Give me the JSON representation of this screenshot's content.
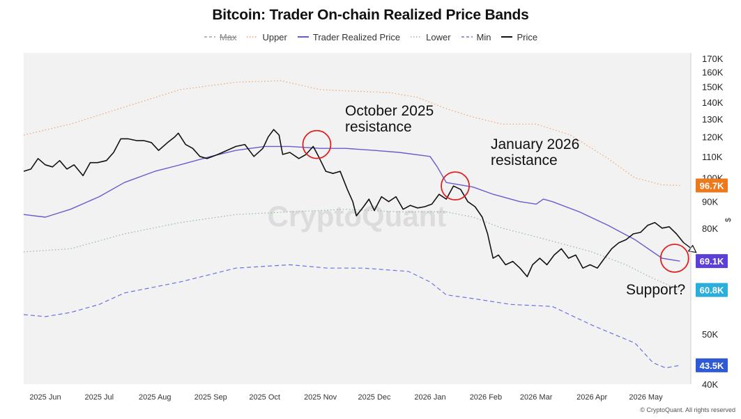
{
  "chart_data": {
    "type": "line",
    "title": "Bitcoin: Trader On-chain Realized Price Bands",
    "y_unit": "$",
    "y_scale": "log",
    "ylim": [
      40000,
      170000
    ],
    "y_ticks": [
      {
        "v": 170000,
        "label": "170K"
      },
      {
        "v": 160000,
        "label": "160K"
      },
      {
        "v": 150000,
        "label": "150K"
      },
      {
        "v": 140000,
        "label": "140K"
      },
      {
        "v": 130000,
        "label": "130K"
      },
      {
        "v": 120000,
        "label": "120K"
      },
      {
        "v": 110000,
        "label": "110K"
      },
      {
        "v": 100000,
        "label": "100K"
      },
      {
        "v": 90000,
        "label": "90K"
      },
      {
        "v": 80000,
        "label": "80K"
      },
      {
        "v": 70000,
        "label": "70K"
      },
      {
        "v": 60000,
        "label": "60K"
      },
      {
        "v": 50000,
        "label": "50K"
      },
      {
        "v": 40000,
        "label": "40K"
      }
    ],
    "xlim": [
      "2025-05-20",
      "2026-05-26"
    ],
    "x_ticks": [
      {
        "date": "2025-06-01",
        "label": "2025 Jun"
      },
      {
        "date": "2025-07-01",
        "label": "2025 Jul"
      },
      {
        "date": "2025-08-01",
        "label": "2025 Aug"
      },
      {
        "date": "2025-09-01",
        "label": "2025 Sep"
      },
      {
        "date": "2025-10-01",
        "label": "2025 Oct"
      },
      {
        "date": "2025-11-01",
        "label": "2025 Nov"
      },
      {
        "date": "2025-12-01",
        "label": "2025 Dec"
      },
      {
        "date": "2026-01-01",
        "label": "2026 Jan"
      },
      {
        "date": "2026-02-01",
        "label": "2026 Feb"
      },
      {
        "date": "2026-03-01",
        "label": "2026 Mar"
      },
      {
        "date": "2026-04-01",
        "label": "2026 Apr"
      },
      {
        "date": "2026-05-01",
        "label": "2026 May"
      }
    ],
    "legend_position": "top-center",
    "series": [
      {
        "name": "Max",
        "style": "dashed",
        "color": "#9aa0b8",
        "hidden": true,
        "points": []
      },
      {
        "name": "Upper",
        "style": "dotted",
        "color": "#f0a070",
        "points": [
          [
            "2025-05-20",
            121000
          ],
          [
            "2025-06-15",
            127000
          ],
          [
            "2025-07-15",
            137000
          ],
          [
            "2025-08-15",
            148000
          ],
          [
            "2025-09-15",
            153000
          ],
          [
            "2025-10-10",
            154000
          ],
          [
            "2025-11-01",
            148000
          ],
          [
            "2025-11-20",
            147000
          ],
          [
            "2025-12-10",
            146000
          ],
          [
            "2025-12-25",
            143000
          ],
          [
            "2026-01-10",
            136000
          ],
          [
            "2026-01-25",
            131000
          ],
          [
            "2026-02-10",
            127000
          ],
          [
            "2026-03-01",
            127000
          ],
          [
            "2026-03-20",
            121000
          ],
          [
            "2026-04-10",
            109000
          ],
          [
            "2026-04-25",
            100000
          ],
          [
            "2026-05-10",
            97000
          ],
          [
            "2026-05-20",
            96700
          ]
        ]
      },
      {
        "name": "Trader Realized Price",
        "style": "solid",
        "color": "#6a5acd",
        "points": [
          [
            "2025-05-20",
            85000
          ],
          [
            "2025-06-01",
            84000
          ],
          [
            "2025-06-15",
            87000
          ],
          [
            "2025-07-01",
            92000
          ],
          [
            "2025-07-15",
            98000
          ],
          [
            "2025-08-01",
            103000
          ],
          [
            "2025-08-15",
            106000
          ],
          [
            "2025-09-01",
            110000
          ],
          [
            "2025-09-15",
            113000
          ],
          [
            "2025-10-01",
            115000
          ],
          [
            "2025-10-15",
            115000
          ],
          [
            "2025-11-01",
            114000
          ],
          [
            "2025-11-15",
            114000
          ],
          [
            "2025-12-01",
            113000
          ],
          [
            "2025-12-15",
            112000
          ],
          [
            "2026-01-01",
            110000
          ],
          [
            "2026-01-05",
            105000
          ],
          [
            "2026-01-10",
            98000
          ],
          [
            "2026-01-25",
            96000
          ],
          [
            "2026-02-05",
            93000
          ],
          [
            "2026-02-20",
            90000
          ],
          [
            "2026-03-01",
            89000
          ],
          [
            "2026-03-05",
            91000
          ],
          [
            "2026-03-10",
            90000
          ],
          [
            "2026-03-25",
            86000
          ],
          [
            "2026-04-10",
            81000
          ],
          [
            "2026-04-25",
            76000
          ],
          [
            "2026-05-10",
            70000
          ],
          [
            "2026-05-20",
            69100
          ]
        ]
      },
      {
        "name": "Lower",
        "style": "dotted",
        "color": "#8fbc8f",
        "points": [
          [
            "2025-05-20",
            72000
          ],
          [
            "2025-06-15",
            73000
          ],
          [
            "2025-07-15",
            78000
          ],
          [
            "2025-08-15",
            82000
          ],
          [
            "2025-09-15",
            85000
          ],
          [
            "2025-10-15",
            86000
          ],
          [
            "2025-11-15",
            87000
          ],
          [
            "2025-12-15",
            86000
          ],
          [
            "2026-01-10",
            86000
          ],
          [
            "2026-01-25",
            84000
          ],
          [
            "2026-02-10",
            80000
          ],
          [
            "2026-03-01",
            77000
          ],
          [
            "2026-04-01",
            72000
          ],
          [
            "2026-04-20",
            68000
          ],
          [
            "2026-05-05",
            64000
          ],
          [
            "2026-05-20",
            60800
          ]
        ]
      },
      {
        "name": "Min",
        "style": "dashed",
        "color": "#6a73e0",
        "points": [
          [
            "2025-05-20",
            54500
          ],
          [
            "2025-06-01",
            54000
          ],
          [
            "2025-06-15",
            55000
          ],
          [
            "2025-07-01",
            57000
          ],
          [
            "2025-07-15",
            60000
          ],
          [
            "2025-08-15",
            63000
          ],
          [
            "2025-09-15",
            67000
          ],
          [
            "2025-10-15",
            68000
          ],
          [
            "2025-11-05",
            67000
          ],
          [
            "2025-11-25",
            67000
          ],
          [
            "2025-12-20",
            66000
          ],
          [
            "2026-01-01",
            63000
          ],
          [
            "2026-01-10",
            59500
          ],
          [
            "2026-01-25",
            58500
          ],
          [
            "2026-02-15",
            57000
          ],
          [
            "2026-03-10",
            56500
          ],
          [
            "2026-04-01",
            52000
          ],
          [
            "2026-04-25",
            48000
          ],
          [
            "2026-05-05",
            44000
          ],
          [
            "2026-05-12",
            43000
          ],
          [
            "2026-05-20",
            43500
          ]
        ]
      },
      {
        "name": "Price",
        "style": "solid",
        "color": "#111111",
        "points": [
          [
            "2025-05-20",
            103000
          ],
          [
            "2025-05-24",
            104000
          ],
          [
            "2025-05-28",
            109000
          ],
          [
            "2025-06-01",
            106000
          ],
          [
            "2025-06-05",
            105000
          ],
          [
            "2025-06-09",
            108000
          ],
          [
            "2025-06-13",
            104000
          ],
          [
            "2025-06-17",
            106000
          ],
          [
            "2025-06-22",
            101000
          ],
          [
            "2025-06-26",
            107000
          ],
          [
            "2025-06-30",
            107000
          ],
          [
            "2025-07-05",
            108000
          ],
          [
            "2025-07-09",
            112000
          ],
          [
            "2025-07-13",
            119000
          ],
          [
            "2025-07-17",
            119000
          ],
          [
            "2025-07-22",
            118000
          ],
          [
            "2025-07-26",
            118000
          ],
          [
            "2025-07-30",
            117000
          ],
          [
            "2025-08-03",
            113000
          ],
          [
            "2025-08-08",
            117000
          ],
          [
            "2025-08-12",
            120000
          ],
          [
            "2025-08-14",
            122000
          ],
          [
            "2025-08-18",
            116000
          ],
          [
            "2025-08-22",
            114000
          ],
          [
            "2025-08-26",
            110000
          ],
          [
            "2025-08-30",
            109000
          ],
          [
            "2025-09-05",
            111000
          ],
          [
            "2025-09-10",
            113000
          ],
          [
            "2025-09-15",
            115000
          ],
          [
            "2025-09-20",
            116000
          ],
          [
            "2025-09-25",
            110000
          ],
          [
            "2025-09-30",
            114000
          ],
          [
            "2025-10-03",
            120000
          ],
          [
            "2025-10-06",
            124000
          ],
          [
            "2025-10-09",
            121000
          ],
          [
            "2025-10-11",
            111000
          ],
          [
            "2025-10-15",
            112000
          ],
          [
            "2025-10-20",
            109000
          ],
          [
            "2025-10-24",
            111000
          ],
          [
            "2025-10-28",
            115000
          ],
          [
            "2025-10-31",
            110000
          ],
          [
            "2025-11-04",
            103000
          ],
          [
            "2025-11-08",
            102000
          ],
          [
            "2025-11-12",
            103000
          ],
          [
            "2025-11-16",
            95000
          ],
          [
            "2025-11-19",
            90000
          ],
          [
            "2025-11-21",
            84500
          ],
          [
            "2025-11-25",
            88000
          ],
          [
            "2025-11-28",
            91000
          ],
          [
            "2025-12-01",
            86500
          ],
          [
            "2025-12-05",
            92000
          ],
          [
            "2025-12-09",
            90000
          ],
          [
            "2025-12-13",
            92000
          ],
          [
            "2025-12-17",
            87000
          ],
          [
            "2025-12-21",
            88500
          ],
          [
            "2025-12-25",
            87500
          ],
          [
            "2025-12-29",
            88000
          ],
          [
            "2026-01-02",
            89000
          ],
          [
            "2026-01-06",
            93000
          ],
          [
            "2026-01-10",
            91000
          ],
          [
            "2026-01-14",
            96500
          ],
          [
            "2026-01-18",
            95000
          ],
          [
            "2026-01-22",
            90000
          ],
          [
            "2026-01-26",
            88000
          ],
          [
            "2026-01-30",
            84000
          ],
          [
            "2026-02-02",
            78000
          ],
          [
            "2026-02-05",
            70000
          ],
          [
            "2026-02-08",
            71000
          ],
          [
            "2026-02-12",
            68000
          ],
          [
            "2026-02-16",
            69000
          ],
          [
            "2026-02-20",
            67000
          ],
          [
            "2026-02-24",
            64500
          ],
          [
            "2026-02-27",
            68000
          ],
          [
            "2026-03-03",
            70000
          ],
          [
            "2026-03-07",
            68000
          ],
          [
            "2026-03-11",
            71000
          ],
          [
            "2026-03-15",
            73000
          ],
          [
            "2026-03-19",
            70000
          ],
          [
            "2026-03-23",
            71000
          ],
          [
            "2026-03-27",
            67000
          ],
          [
            "2026-03-31",
            68000
          ],
          [
            "2026-04-04",
            67000
          ],
          [
            "2026-04-08",
            70000
          ],
          [
            "2026-04-12",
            73000
          ],
          [
            "2026-04-16",
            75000
          ],
          [
            "2026-04-20",
            76000
          ],
          [
            "2026-04-24",
            78000
          ],
          [
            "2026-04-28",
            78500
          ],
          [
            "2026-05-02",
            81000
          ],
          [
            "2026-05-06",
            82000
          ],
          [
            "2026-05-10",
            80000
          ],
          [
            "2026-05-14",
            80500
          ],
          [
            "2026-05-18",
            78000
          ],
          [
            "2026-05-22",
            75000
          ]
        ]
      }
    ],
    "annotations": [
      {
        "lines": [
          "October 2025",
          "resistance"
        ],
        "circle": {
          "date": "2025-10-30",
          "value": 116000
        }
      },
      {
        "lines": [
          "January 2026",
          "resistance"
        ],
        "circle": {
          "date": "2026-01-15",
          "value": 96500
        }
      },
      {
        "lines": [
          "Support?"
        ],
        "circle": {
          "date": "2026-05-17",
          "value": 70000
        }
      }
    ],
    "end_labels": [
      {
        "text": "96.7K",
        "color": "#ec7a1c",
        "value": 96700
      },
      {
        "text": "69.1K",
        "color": "#5b3fd6",
        "value": 69100
      },
      {
        "text": "60.8K",
        "color": "#2aaedc",
        "value": 60800
      },
      {
        "text": "43.5K",
        "color": "#2f5ad6",
        "value": 43500
      }
    ],
    "watermark": "CryptoQuant",
    "copyright": "© CryptoQuant. All rights reserved"
  }
}
